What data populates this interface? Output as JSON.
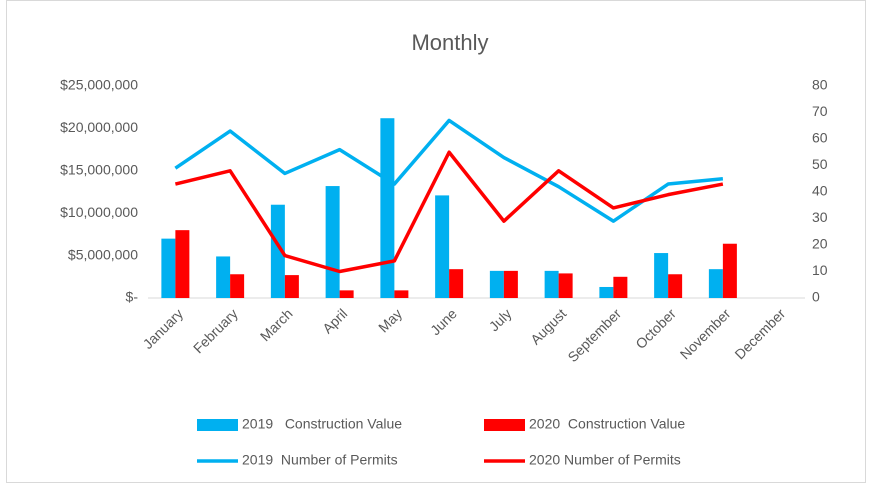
{
  "chart_data": {
    "type": "combo",
    "title": "Monthly",
    "categories": [
      "January",
      "February",
      "March",
      "April",
      "May",
      "June",
      "July",
      "August",
      "September",
      "October",
      "November",
      "December"
    ],
    "series": [
      {
        "name": "2019   Construction Value",
        "type": "bar",
        "axis": "y",
        "color": "#00b0f0",
        "values": [
          7000000,
          4900000,
          11000000,
          13200000,
          21200000,
          12100000,
          3200000,
          3200000,
          1300000,
          5300000,
          3400000,
          null
        ]
      },
      {
        "name": "2020  Construction Value",
        "type": "bar",
        "axis": "y",
        "color": "#ff0000",
        "values": [
          8000000,
          2800000,
          2700000,
          900000,
          900000,
          3400000,
          3200000,
          2900000,
          2500000,
          2800000,
          6400000,
          null
        ]
      },
      {
        "name": "2019  Number of Permits",
        "type": "line",
        "axis": "y2",
        "color": "#00b0f0",
        "values": [
          49,
          63,
          47,
          56,
          43,
          67,
          53,
          42,
          29,
          43,
          45,
          null
        ]
      },
      {
        "name": "2020 Number of Permits",
        "type": "line",
        "axis": "y2",
        "color": "#ff0000",
        "values": [
          43,
          48,
          16,
          10,
          14,
          55,
          29,
          48,
          34,
          39,
          43,
          null
        ]
      }
    ],
    "ylim": [
      0,
      25000000
    ],
    "yticks": [
      {
        "value": 0,
        "label": "$-"
      },
      {
        "value": 5000000,
        "label": "$5,000,000"
      },
      {
        "value": 10000000,
        "label": "$10,000,000"
      },
      {
        "value": 15000000,
        "label": "$15,000,000"
      },
      {
        "value": 20000000,
        "label": "$20,000,000"
      },
      {
        "value": 25000000,
        "label": "$25,000,000"
      }
    ],
    "y2lim": [
      0,
      80
    ],
    "y2ticks": [
      0,
      10,
      20,
      30,
      40,
      50,
      60,
      70,
      80
    ],
    "grid": false
  }
}
